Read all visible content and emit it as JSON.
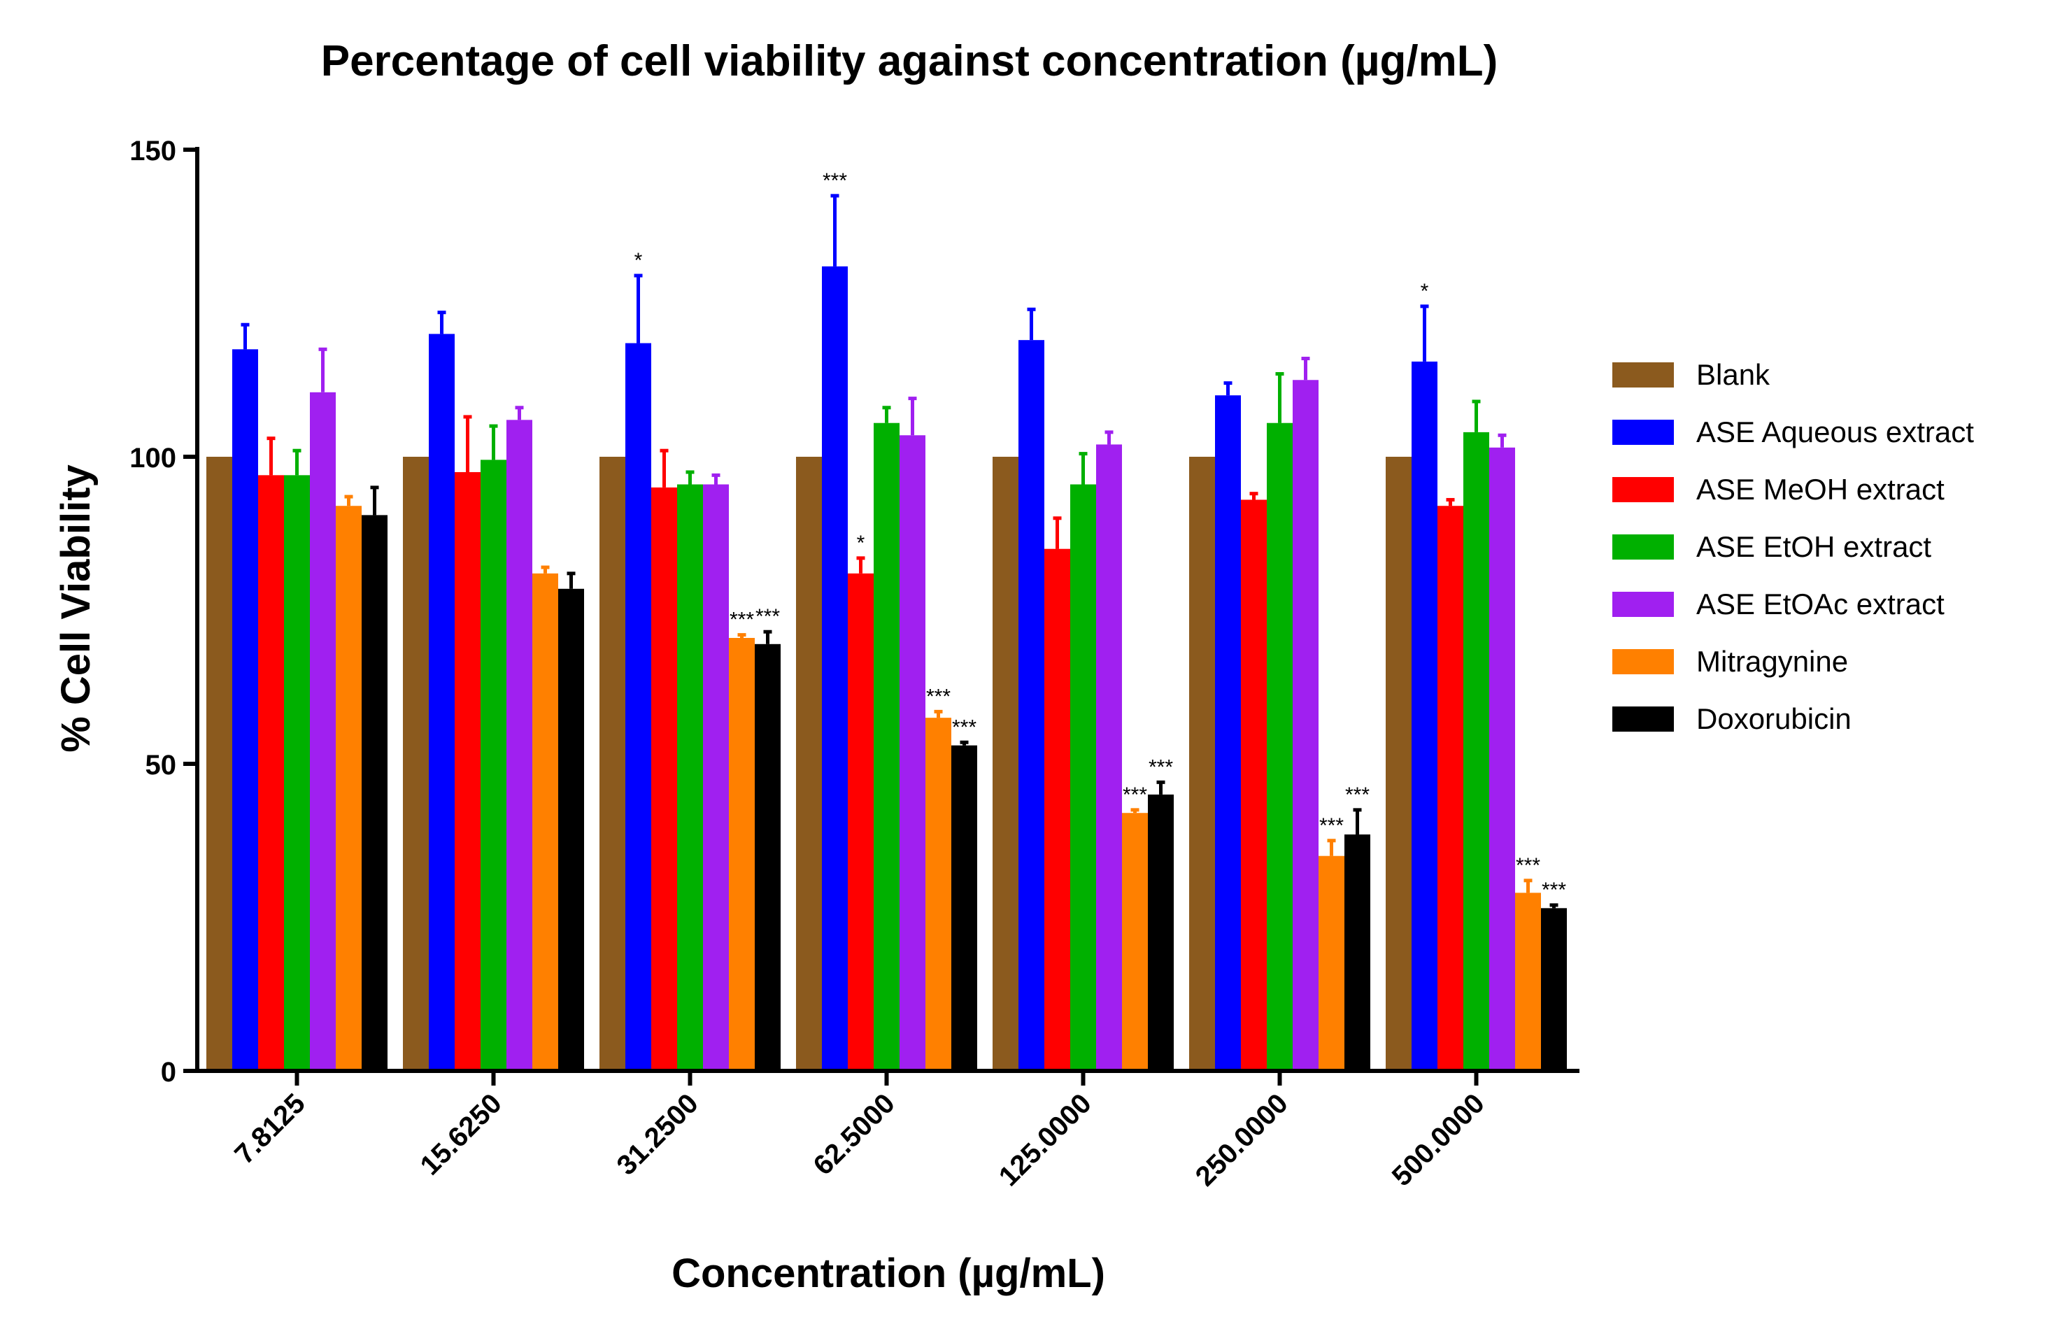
{
  "chart_data": {
    "type": "bar",
    "title": "Percentage of cell viability against concentration (µg/mL)",
    "xlabel": "Concentration (µg/mL)",
    "ylabel": "% Cell Viability",
    "ylim": [
      0,
      150
    ],
    "yticks": [
      "0",
      "50",
      "100",
      "150"
    ],
    "categories": [
      "7.8125",
      "15.6250",
      "31.2500",
      "62.5000",
      "125.0000",
      "250.0000",
      "500.0000"
    ],
    "legend_position": "right",
    "grid": false,
    "series": [
      {
        "name": "Blank",
        "color": "#8B5A1E",
        "values": [
          100,
          100,
          100,
          100,
          100,
          100,
          100
        ],
        "errors": [
          0,
          0,
          0,
          0,
          0,
          0,
          0
        ],
        "sig": [
          "",
          "",
          "",
          "",
          "",
          "",
          ""
        ]
      },
      {
        "name": "ASE Aqueous extract",
        "color": "#0000FF",
        "values": [
          117.5,
          120,
          118.5,
          131,
          119,
          110,
          115.5
        ],
        "errors": [
          4,
          3.5,
          11,
          11.5,
          5,
          2,
          9
        ],
        "sig": [
          "",
          "",
          "*",
          "***",
          "",
          "",
          "*"
        ]
      },
      {
        "name": "ASE MeOH extract",
        "color": "#FF0000",
        "values": [
          97,
          97.5,
          95,
          81,
          85,
          93,
          92
        ],
        "errors": [
          6,
          9,
          6,
          2.5,
          5,
          1,
          1
        ],
        "sig": [
          "",
          "",
          "",
          "*",
          "",
          "",
          ""
        ]
      },
      {
        "name": "ASE EtOH extract",
        "color": "#00B000",
        "values": [
          97,
          99.5,
          95.5,
          105.5,
          95.5,
          105.5,
          104
        ],
        "errors": [
          4,
          5.5,
          2,
          2.5,
          5,
          8,
          5
        ],
        "sig": [
          "",
          "",
          "",
          "",
          "",
          "",
          ""
        ]
      },
      {
        "name": "ASE EtOAc extract",
        "color": "#A020F0",
        "values": [
          110.5,
          106,
          95.5,
          103.5,
          102,
          112.5,
          101.5
        ],
        "errors": [
          7,
          2,
          1.5,
          6,
          2,
          3.5,
          2
        ],
        "sig": [
          "",
          "",
          "",
          "",
          "",
          "",
          ""
        ]
      },
      {
        "name": "Mitragynine",
        "color": "#FF8000",
        "values": [
          92,
          81,
          70.5,
          57.5,
          42,
          35,
          29
        ],
        "errors": [
          1.5,
          1,
          0.5,
          1,
          0.5,
          2.5,
          2
        ],
        "sig": [
          "",
          "",
          "***",
          "***",
          "***",
          "***",
          "***"
        ]
      },
      {
        "name": "Doxorubicin",
        "color": "#000000",
        "values": [
          90.5,
          78.5,
          69.5,
          53,
          45,
          38.5,
          26.5
        ],
        "errors": [
          4.5,
          2.5,
          2,
          0.5,
          2,
          4,
          0.5
        ],
        "sig": [
          "",
          "",
          "***",
          "***",
          "***",
          "***",
          "***"
        ]
      }
    ]
  }
}
